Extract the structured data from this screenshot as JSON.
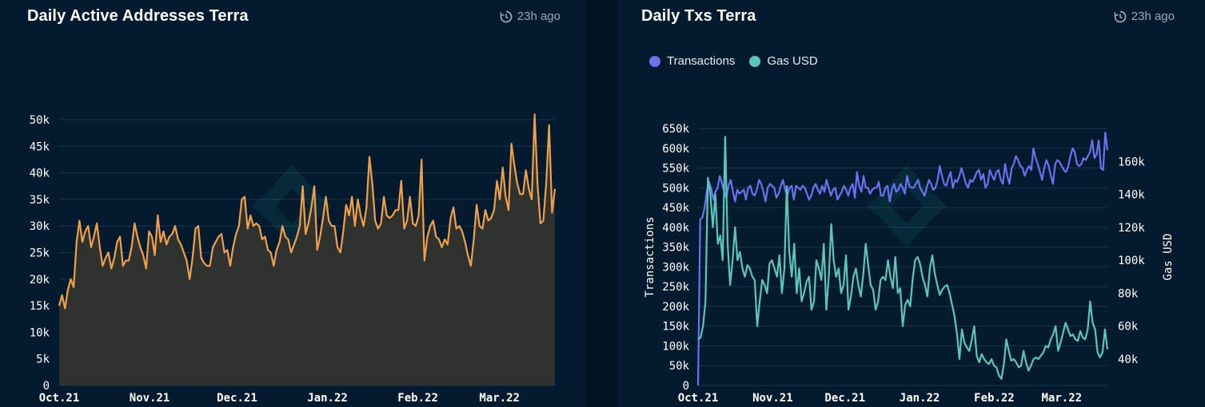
{
  "panels": {
    "left": {
      "title": "Daily Active Addresses Terra",
      "updated": "23h ago"
    },
    "right": {
      "title": "Daily Txs Terra",
      "updated": "23h ago"
    }
  },
  "colors": {
    "orange": "#f0a04b",
    "blue": "#6b72ef",
    "teal": "#5cc6bb"
  },
  "chart_data": [
    {
      "type": "area",
      "title": "Daily Active Addresses Terra",
      "xlabel": "",
      "ylabel": "",
      "ylim": [
        0,
        50000
      ],
      "yticks": [
        0,
        5000,
        10000,
        15000,
        20000,
        25000,
        30000,
        35000,
        40000,
        45000,
        50000
      ],
      "ytick_labels": [
        "0",
        "5k",
        "10k",
        "15k",
        "20k",
        "25k",
        "30k",
        "35k",
        "40k",
        "45k",
        "50k"
      ],
      "x_axis": {
        "start": "2021-10-01",
        "end": "2022-03-20"
      },
      "xticks": [
        "Oct.21",
        "Nov.21",
        "Dec.21",
        "Jan.22",
        "Feb.22",
        "Mar.22"
      ],
      "grid": true,
      "series": [
        {
          "color": "#f0a04b",
          "values": [
            15000,
            17000,
            14500,
            18000,
            20000,
            18500,
            27000,
            31000,
            27000,
            29000,
            30000,
            26000,
            28000,
            30500,
            26000,
            22500,
            24000,
            25000,
            22000,
            24000,
            27000,
            28000,
            22500,
            23500,
            23500,
            26000,
            30500,
            28000,
            26000,
            24500,
            22000,
            29000,
            28000,
            24500,
            32000,
            27000,
            29000,
            26500,
            28000,
            28500,
            30000,
            27500,
            26500,
            25000,
            23500,
            20000,
            24000,
            29500,
            30000,
            24000,
            23000,
            22500,
            22500,
            26000,
            27000,
            28000,
            28500,
            25000,
            25500,
            22500,
            26000,
            28500,
            30000,
            35000,
            35500,
            29500,
            32000,
            30000,
            30500,
            30000,
            27500,
            28000,
            25500,
            25000,
            22500,
            25500,
            27000,
            30000,
            28000,
            27500,
            25000,
            26500,
            28000,
            30000,
            37500,
            28500,
            30500,
            33500,
            37500,
            25500,
            28000,
            31500,
            35500,
            31000,
            30000,
            30000,
            26000,
            25000,
            29000,
            34000,
            32000,
            35500,
            30000,
            35000,
            32000,
            30000,
            33500,
            43000,
            38000,
            31000,
            29500,
            30500,
            35500,
            32000,
            31500,
            32000,
            33000,
            33000,
            38500,
            29500,
            31000,
            35500,
            30500,
            30000,
            32000,
            42500,
            23500,
            28000,
            30000,
            31000,
            28000,
            27500,
            26000,
            27500,
            26500,
            31500,
            33500,
            29500,
            30000,
            29000,
            27000,
            24500,
            22500,
            27500,
            34000,
            30000,
            29500,
            33000,
            31000,
            31500,
            33000,
            38500,
            35000,
            41000,
            35500,
            33000,
            45500,
            41500,
            38000,
            36000,
            36000,
            40500,
            37000,
            35000,
            51000,
            38000,
            30500,
            31000,
            38000,
            49000,
            32500,
            37000
          ]
        }
      ]
    },
    {
      "type": "line",
      "title": "Daily Txs Terra",
      "x_axis": {
        "start": "2021-10-01",
        "end": "2022-03-20"
      },
      "xticks": [
        "Oct.21",
        "Nov.21",
        "Dec.21",
        "Jan.22",
        "Feb.22",
        "Mar.22"
      ],
      "ylabel": "Transactions",
      "y2label": "Gas USD",
      "ylim": [
        0,
        650000
      ],
      "yticks": [
        0,
        50000,
        100000,
        150000,
        200000,
        250000,
        300000,
        350000,
        400000,
        450000,
        500000,
        550000,
        600000,
        650000
      ],
      "ytick_labels": [
        "0",
        "50k",
        "100k",
        "150k",
        "200k",
        "250k",
        "300k",
        "350k",
        "400k",
        "450k",
        "500k",
        "550k",
        "600k",
        "650k"
      ],
      "y2lim": [
        24000,
        180000
      ],
      "y2ticks": [
        40000,
        60000,
        80000,
        100000,
        120000,
        140000,
        160000
      ],
      "y2tick_labels": [
        "40k",
        "60k",
        "80k",
        "100k",
        "120k",
        "140k",
        "160k"
      ],
      "legend": "top-left",
      "grid": true,
      "series": [
        {
          "name": "Transactions",
          "axis": "left",
          "color": "#6b72ef",
          "values": [
            0,
            420000,
            425000,
            450000,
            490000,
            515000,
            500000,
            470000,
            490000,
            500000,
            530000,
            510000,
            490000,
            475000,
            505000,
            520000,
            490000,
            465000,
            495000,
            485000,
            490000,
            495000,
            470000,
            500000,
            505000,
            485000,
            480000,
            495000,
            520000,
            510000,
            490000,
            465000,
            500000,
            510000,
            505000,
            500000,
            475000,
            485000,
            505000,
            520000,
            495000,
            480000,
            500000,
            505000,
            470000,
            505000,
            500000,
            495000,
            505000,
            500000,
            485000,
            470000,
            480000,
            500000,
            510000,
            495000,
            485000,
            505000,
            490000,
            520000,
            500000,
            480000,
            495000,
            500000,
            470000,
            480000,
            490000,
            505000,
            495000,
            480000,
            500000,
            510000,
            475000,
            540000,
            505000,
            490000,
            530000,
            500000,
            500000,
            485000,
            495000,
            500000,
            500000,
            515000,
            480000,
            480000,
            500000,
            505000,
            465000,
            495000,
            510000,
            490000,
            495000,
            510000,
            500000,
            485000,
            530000,
            505000,
            500000,
            500000,
            510000,
            520000,
            500000,
            490000,
            480000,
            500000,
            520000,
            510000,
            495000,
            500000,
            520000,
            555000,
            530000,
            510000,
            505000,
            525000,
            540000,
            500000,
            520000,
            515000,
            530000,
            550000,
            530000,
            510000,
            500000,
            520000,
            515000,
            525000,
            540000,
            545000,
            520000,
            535000,
            500000,
            510000,
            545000,
            530000,
            520000,
            540000,
            545000,
            520000,
            510000,
            560000,
            530000,
            510000,
            550000,
            560000,
            580000,
            570000,
            555000,
            550000,
            530000,
            545000,
            555000,
            545000,
            600000,
            575000,
            560000,
            540000,
            520000,
            550000,
            570000,
            555000,
            530000,
            510000,
            560000,
            570000,
            565000,
            555000,
            545000,
            540000,
            555000,
            580000,
            600000,
            590000,
            560000,
            555000,
            560000,
            575000,
            570000,
            580000,
            590000,
            620000,
            575000,
            585000,
            620000,
            550000,
            545000,
            640000,
            595000
          ]
        },
        {
          "name": "Gas USD",
          "axis": "right",
          "color": "#5cc6bb",
          "values": [
            52000,
            53000,
            60000,
            75000,
            150000,
            140000,
            120000,
            140000,
            110000,
            115000,
            100000,
            175000,
            110000,
            85000,
            100000,
            120000,
            100000,
            105000,
            95000,
            90000,
            97000,
            95000,
            90000,
            88000,
            60000,
            75000,
            88000,
            85000,
            80000,
            98000,
            100000,
            95000,
            90000,
            103000,
            80000,
            95000,
            145000,
            105000,
            90000,
            110000,
            80000,
            95000,
            75000,
            80000,
            87000,
            90000,
            70000,
            75000,
            100000,
            95000,
            88000,
            110000,
            70000,
            90000,
            122000,
            100000,
            90000,
            95000,
            80000,
            85000,
            103000,
            70000,
            78000,
            90000,
            95000,
            85000,
            78000,
            92000,
            110000,
            97000,
            85000,
            82000,
            70000,
            75000,
            88000,
            90000,
            88000,
            100000,
            90000,
            83000,
            102000,
            80000,
            83000,
            60000,
            73000,
            76000,
            72000,
            88000,
            100000,
            102000,
            98000,
            90000,
            85000,
            78000,
            95000,
            103000,
            92000,
            85000,
            79000,
            82000,
            84000,
            85000,
            80000,
            73000,
            66000,
            55000,
            40000,
            58000,
            50000,
            47000,
            45000,
            52000,
            60000,
            42000,
            38000,
            43000,
            40000,
            38000,
            37000,
            40000,
            36000,
            35000,
            30000,
            28000,
            37000,
            52000,
            45000,
            39000,
            40000,
            38000,
            35000,
            36000,
            45000,
            38000,
            33000,
            36000,
            40000,
            41000,
            40000,
            42000,
            44000,
            48000,
            47000,
            52000,
            55000,
            60000,
            45000,
            50000,
            56000,
            62000,
            58000,
            54000,
            55000,
            52000,
            51000,
            57000,
            53000,
            52000,
            58000,
            75000,
            62000,
            58000,
            44000,
            41000,
            44000,
            58000,
            46000
          ]
        }
      ]
    }
  ]
}
